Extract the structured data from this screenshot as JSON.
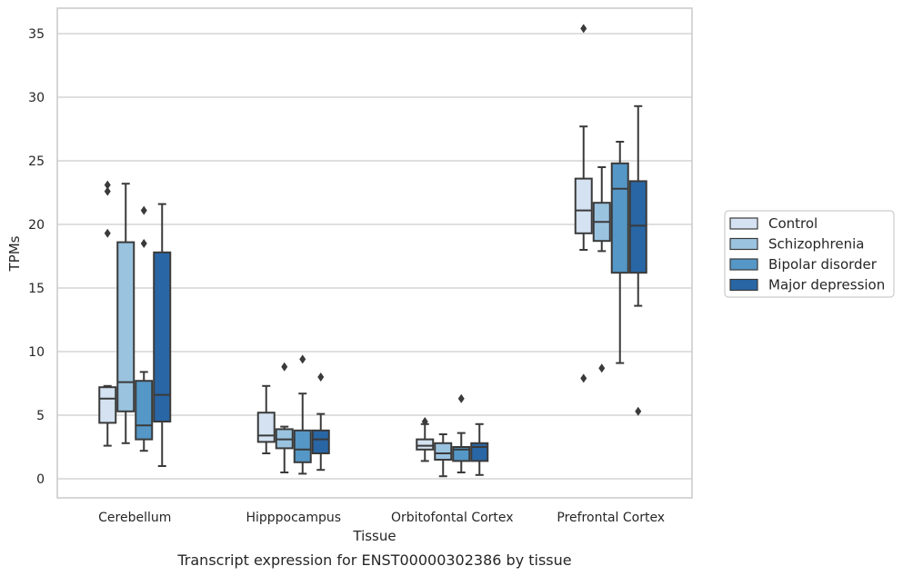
{
  "chart_data": {
    "type": "boxplot",
    "title": "",
    "caption": "Transcript expression for ENST00000302386 by tissue",
    "xlabel": "Tissue",
    "ylabel": "TPMs",
    "ylim": [
      -1.5,
      37
    ],
    "yticks": [
      0,
      5,
      10,
      15,
      20,
      25,
      30,
      35
    ],
    "grid": "horizontal",
    "legend_position": "right",
    "categories": [
      "Cerebellum",
      "Hipppocampus",
      "Orbitofontal Cortex",
      "Prefrontal Cortex"
    ],
    "series": [
      {
        "name": "Control",
        "color": "#d4e2f1",
        "boxes": [
          {
            "whislo": 2.6,
            "q1": 4.4,
            "med": 6.3,
            "q3": 7.2,
            "whishi": 7.3,
            "fliers": [
              19.3,
              22.6,
              23.1
            ]
          },
          {
            "whislo": 2.0,
            "q1": 2.9,
            "med": 3.4,
            "q3": 5.2,
            "whishi": 7.3,
            "fliers": []
          },
          {
            "whislo": 1.4,
            "q1": 2.3,
            "med": 2.6,
            "q3": 3.1,
            "whishi": 4.3,
            "fliers": [
              4.5
            ]
          },
          {
            "whislo": 18.0,
            "q1": 19.3,
            "med": 21.1,
            "q3": 23.6,
            "whishi": 27.7,
            "fliers": [
              35.4,
              7.9
            ]
          }
        ]
      },
      {
        "name": "Schizophrenia",
        "color": "#9ac3df",
        "boxes": [
          {
            "whislo": 2.8,
            "q1": 5.3,
            "med": 7.6,
            "q3": 18.6,
            "whishi": 23.2,
            "fliers": []
          },
          {
            "whislo": 0.5,
            "q1": 2.4,
            "med": 3.1,
            "q3": 3.9,
            "whishi": 4.1,
            "fliers": [
              8.8
            ]
          },
          {
            "whislo": 0.2,
            "q1": 1.5,
            "med": 2.0,
            "q3": 2.8,
            "whishi": 3.5,
            "fliers": []
          },
          {
            "whislo": 17.9,
            "q1": 18.7,
            "med": 20.2,
            "q3": 21.7,
            "whishi": 24.5,
            "fliers": [
              8.7
            ]
          }
        ]
      },
      {
        "name": "Bipolar disorder",
        "color": "#5597c6",
        "boxes": [
          {
            "whislo": 2.2,
            "q1": 3.1,
            "med": 4.2,
            "q3": 7.7,
            "whishi": 8.4,
            "fliers": [
              21.1,
              18.5
            ]
          },
          {
            "whislo": 0.4,
            "q1": 1.3,
            "med": 2.3,
            "q3": 3.8,
            "whishi": 6.7,
            "fliers": [
              9.4
            ]
          },
          {
            "whislo": 0.5,
            "q1": 1.4,
            "med": 2.3,
            "q3": 2.5,
            "whishi": 3.6,
            "fliers": [
              6.3
            ]
          },
          {
            "whislo": 9.1,
            "q1": 16.2,
            "med": 22.8,
            "q3": 24.8,
            "whishi": 26.5,
            "fliers": []
          }
        ]
      },
      {
        "name": "Major depression",
        "color": "#2966a5",
        "boxes": [
          {
            "whislo": 1.0,
            "q1": 4.5,
            "med": 6.6,
            "q3": 17.8,
            "whishi": 21.6,
            "fliers": []
          },
          {
            "whislo": 0.7,
            "q1": 2.0,
            "med": 3.1,
            "q3": 3.8,
            "whishi": 5.1,
            "fliers": [
              8.0
            ]
          },
          {
            "whislo": 0.3,
            "q1": 1.4,
            "med": 2.5,
            "q3": 2.8,
            "whishi": 4.3,
            "fliers": []
          },
          {
            "whislo": 13.6,
            "q1": 16.2,
            "med": 19.9,
            "q3": 23.4,
            "whishi": 29.3,
            "fliers": [
              5.3
            ]
          }
        ]
      }
    ]
  }
}
